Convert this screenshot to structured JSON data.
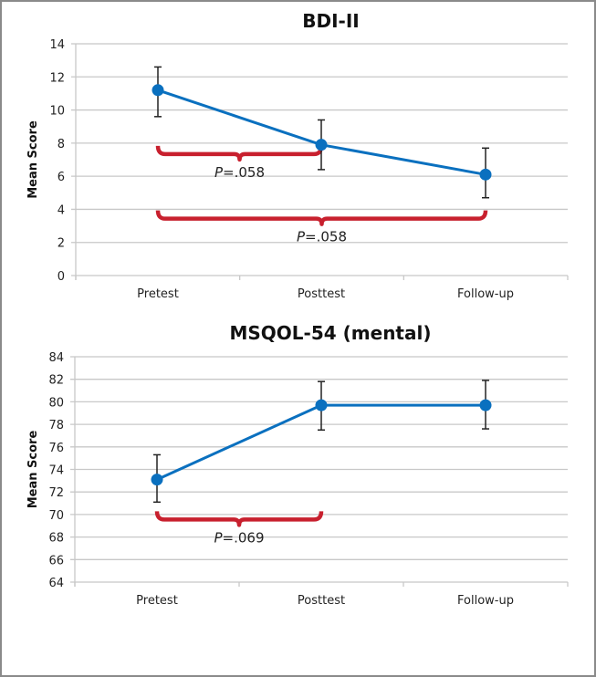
{
  "chart_data": [
    {
      "type": "line",
      "title": "BDI-II",
      "xlabel": "",
      "ylabel": "Mean Score",
      "categories": [
        "Pretest",
        "Posttest",
        "Follow-up"
      ],
      "ylim": [
        0,
        14
      ],
      "yticks": [
        0,
        2,
        4,
        6,
        8,
        10,
        12,
        14
      ],
      "grid": true,
      "series": [
        {
          "name": "BDI-II",
          "values": [
            11.2,
            7.9,
            6.1
          ],
          "error_low": [
            9.6,
            6.4,
            4.7
          ],
          "error_high": [
            12.6,
            9.4,
            7.7
          ],
          "color": "#0a70bf"
        }
      ],
      "annotations": [
        {
          "from": "Pretest",
          "to": "Posttest",
          "y": 7.5,
          "text_prefix": "P",
          "text": "=.058",
          "color": "#c8202e"
        },
        {
          "from": "Pretest",
          "to": "Follow-up",
          "y": 3.6,
          "text_prefix": "P",
          "text": "=.058",
          "color": "#c8202e"
        }
      ]
    },
    {
      "type": "line",
      "title": "MSQOL-54 (mental)",
      "xlabel": "",
      "ylabel": "Mean Score",
      "categories": [
        "Pretest",
        "Posttest",
        "Follow-up"
      ],
      "ylim": [
        64,
        84
      ],
      "yticks": [
        64,
        66,
        68,
        70,
        72,
        74,
        76,
        78,
        80,
        82,
        84
      ],
      "grid": true,
      "series": [
        {
          "name": "MSQOL-54 (mental)",
          "values": [
            73.1,
            79.7,
            79.7
          ],
          "error_low": [
            71.1,
            77.5,
            77.6
          ],
          "error_high": [
            75.3,
            81.8,
            81.9
          ],
          "color": "#0a70bf"
        }
      ],
      "annotations": [
        {
          "from": "Pretest",
          "to": "Posttest",
          "y": 69.8,
          "text_prefix": "P",
          "text": "=.069",
          "color": "#c8202e"
        }
      ]
    }
  ]
}
